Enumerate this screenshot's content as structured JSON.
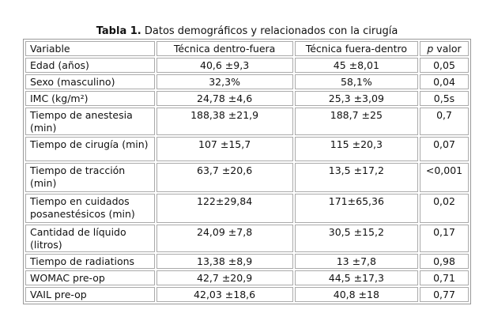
{
  "title": {
    "label": "Tabla 1.",
    "text": "Datos demográficos y relacionados con la cirugía"
  },
  "table": {
    "header": [
      "Variable",
      "Técnica dentro-fuera",
      "Técnica fuera-dentro",
      [
        "p",
        "valor"
      ]
    ],
    "rows": [
      [
        "Edad (años)",
        "40,6 ±9,3",
        "45 ±8,01",
        "0,05"
      ],
      [
        "Sexo (masculino)",
        "32,3%",
        "58,1%",
        "0,04"
      ],
      [
        "IMC (kg/m²)",
        "24,78 ±4,6",
        "25,3 ±3,09",
        "0,5s"
      ],
      [
        "Tiempo de anestesia (min)",
        "188,38 ±21,9",
        "188,7 ±25",
        "0,7"
      ],
      [
        "Tiempo de cirugía (min)",
        "107 ±15,7",
        "115 ±20,3",
        "0,07"
      ],
      [
        "Tiempo de tracción (min)",
        "63,7 ±20,6",
        "13,5 ±17,2",
        "<0,001"
      ],
      [
        "Tiempo en cuidados posanestésicos (min)",
        "122±29,84",
        "171±65,36",
        "0,02"
      ],
      [
        "Cantidad de líquido (litros)",
        "24,09 ±7,8",
        "30,5 ±15,2",
        "0,17"
      ],
      [
        "Tiempo de radiations",
        "13,38 ±8,9",
        "13 ±7,8",
        "0,98"
      ],
      [
        "WOMAC pre-op",
        "42,7  ±20,9",
        "44,5 ±17,3",
        "0,71"
      ],
      [
        "VAIL pre-op",
        "42,03 ±18,6",
        "40,8 ±18",
        "0,77"
      ]
    ]
  }
}
